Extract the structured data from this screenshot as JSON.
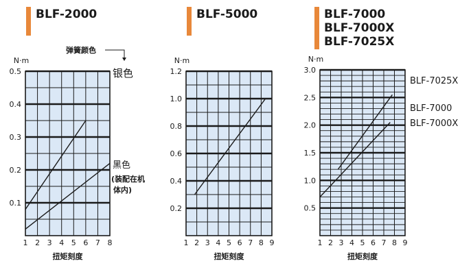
{
  "legend": {
    "spring_color_label": "弹簧颜色"
  },
  "chart_data": [
    {
      "type": "line",
      "title_lines": [
        "BLF-2000"
      ],
      "ylabel": "N·m",
      "xlabel": "扭矩刻度",
      "xlim": [
        1,
        8
      ],
      "ylim": [
        0,
        0.5
      ],
      "x_ticks": [
        "1",
        "2",
        "3",
        "4",
        "5",
        "6",
        "7",
        "8"
      ],
      "y_ticks": [
        {
          "v": 0.1,
          "t": "0.1"
        },
        {
          "v": 0.2,
          "t": "0.2"
        },
        {
          "v": 0.3,
          "t": "0.3"
        },
        {
          "v": 0.4,
          "t": "0.4"
        },
        {
          "v": 0.5,
          "t": "0.5"
        }
      ],
      "minor_y_step": 0.05,
      "major_y_step": 0.1,
      "series": [
        {
          "name": "银色",
          "x": [
            1,
            6
          ],
          "y": [
            0.08,
            0.35
          ]
        },
        {
          "name_lines": [
            "黑色",
            "(装配在机",
            "体内)"
          ],
          "x": [
            1,
            8
          ],
          "y": [
            0.02,
            0.22
          ]
        }
      ]
    },
    {
      "type": "line",
      "title_lines": [
        "BLF-5000"
      ],
      "ylabel": "N·m",
      "xlabel": "扭矩刻度",
      "xlim": [
        1,
        9
      ],
      "ylim": [
        0,
        1.2
      ],
      "x_ticks": [
        "1",
        "2",
        "3",
        "4",
        "5",
        "6",
        "7",
        "8",
        "9"
      ],
      "y_ticks": [
        {
          "v": 0.2,
          "t": "0.2"
        },
        {
          "v": 0.4,
          "t": "0.4"
        },
        {
          "v": 0.6,
          "t": "0.6"
        },
        {
          "v": 0.8,
          "t": "0.8"
        },
        {
          "v": 1.0,
          "t": "1.0"
        },
        {
          "v": 1.2,
          "t": "1.2"
        }
      ],
      "minor_y_step": 0.1,
      "major_y_step": 0.2,
      "series": [
        {
          "x": [
            1.8,
            8.4
          ],
          "y": [
            0.3,
            1.0
          ]
        }
      ]
    },
    {
      "type": "line",
      "title_lines": [
        "BLF-7000",
        "BLF-7000X",
        "BLF-7025X"
      ],
      "ylabel": "N·m",
      "xlabel": "扭矩刻度",
      "xlim": [
        1,
        9
      ],
      "ylim": [
        0,
        3.0
      ],
      "x_ticks": [
        "1",
        "2",
        "3",
        "4",
        "5",
        "6",
        "7",
        "8",
        "9"
      ],
      "y_ticks": [
        {
          "v": 0.5,
          "t": "0.5"
        },
        {
          "v": 1.0,
          "t": "1.0"
        },
        {
          "v": 1.5,
          "t": "1.5"
        },
        {
          "v": 2.0,
          "t": "2.0"
        },
        {
          "v": 2.5,
          "t": "2.5"
        },
        {
          "v": 3.0,
          "t": "3.0"
        }
      ],
      "minor_y_step": 0.1,
      "major_y_step": 0.5,
      "series": [
        {
          "name": "BLF-7025X",
          "x": [
            2.7,
            7.8
          ],
          "y": [
            1.2,
            2.55
          ]
        },
        {
          "name": "BLF-7000X",
          "x": [
            1,
            7.6
          ],
          "y": [
            0.7,
            2.05
          ]
        }
      ],
      "extra_labels": [
        "BLF-7000"
      ]
    }
  ]
}
